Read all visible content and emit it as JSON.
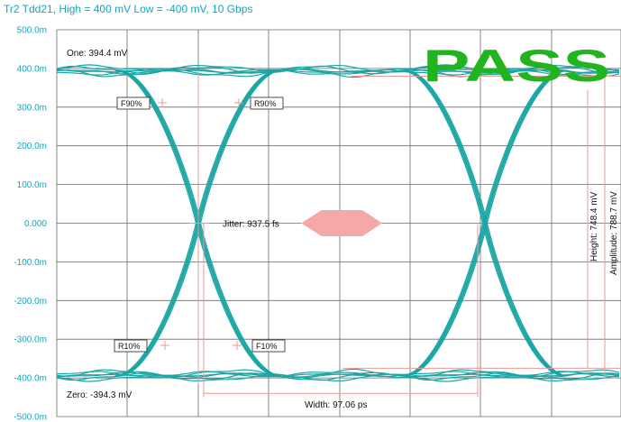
{
  "title": "Tr2 Tdd21, High = 400 mV Low = -400 mV, 10 Gbps",
  "colors": {
    "trace": "#1aa5a5",
    "grid": "#6a6a6a",
    "axis_text": "#15a6b8",
    "mask": "#f5a8a8",
    "pass": "#22b41e",
    "marker": "#e89a9a"
  },
  "chart_data": {
    "type": "line",
    "title": "Tr2 Tdd21, High = 400 mV Low = -400 mV, 10 Gbps",
    "xlabel": "",
    "ylabel": "",
    "ylim": [
      -500,
      500
    ],
    "y_ticks": [
      {
        "value": 500,
        "label": "500.0m"
      },
      {
        "value": 400,
        "label": "400.0m"
      },
      {
        "value": 300,
        "label": "300.0m"
      },
      {
        "value": 200,
        "label": "200.0m"
      },
      {
        "value": 100,
        "label": "100.0m"
      },
      {
        "value": 0,
        "label": "0.000"
      },
      {
        "value": -100,
        "label": "-100.0m"
      },
      {
        "value": -200,
        "label": "-200.0m"
      },
      {
        "value": -300,
        "label": "-300.0m"
      },
      {
        "value": -400,
        "label": "-400.0m"
      },
      {
        "value": -500,
        "label": "-500.0m"
      }
    ],
    "grid": true,
    "one_level_mv": 394.4,
    "zero_level_mv": -394.3,
    "annotations": {
      "one": "One: 394.4 mV",
      "zero": "Zero: -394.3 mV",
      "jitter": "Jitter: 937.5 fs",
      "width": "Width: 97.06 ps",
      "height": "Height: 748.4 mV",
      "amplitude": "Amplitude: 788.7 mV",
      "r90": "R90%",
      "f90": "F90%",
      "r10": "R10%",
      "f10": "F10%"
    },
    "status": "PASS"
  }
}
